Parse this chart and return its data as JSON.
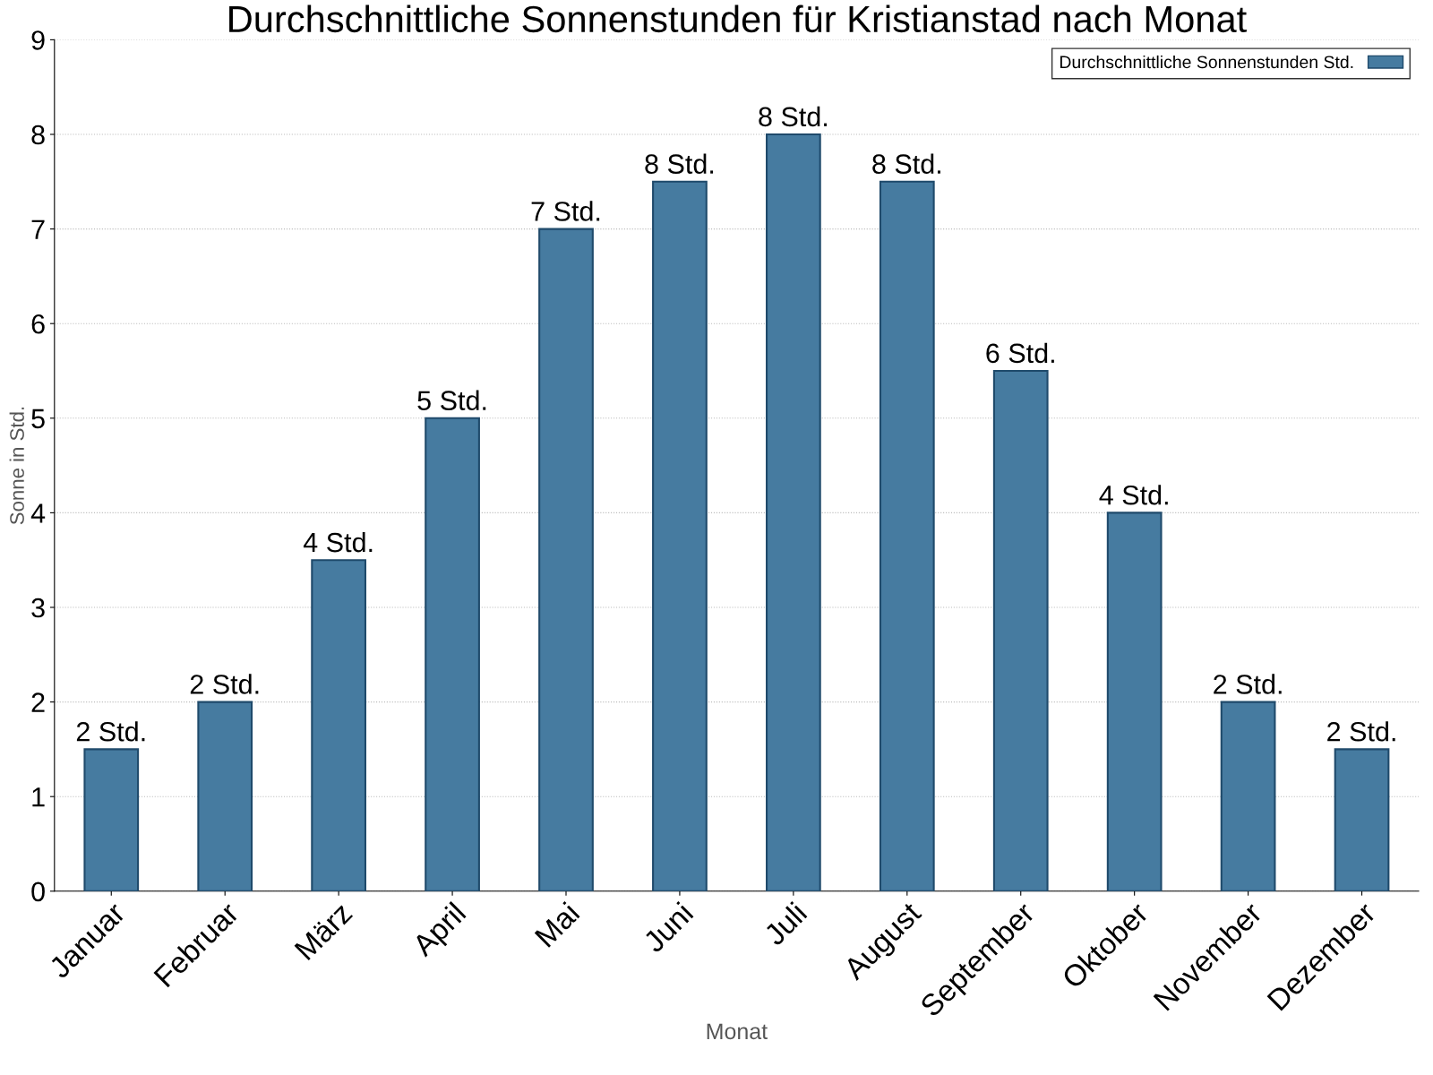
{
  "chart_data": {
    "type": "bar",
    "title": "Durchschnittliche Sonnenstunden für Kristianstad nach Monat",
    "xlabel": "Monat",
    "ylabel": "Sonne in Std.",
    "categories": [
      "Januar",
      "Februar",
      "März",
      "April",
      "Mai",
      "Juni",
      "Juli",
      "August",
      "September",
      "Oktober",
      "November",
      "Dezember"
    ],
    "series": [
      {
        "name": "Durchschnittliche Sonnenstunden Std.",
        "color": "#467ba0",
        "values": [
          1.5,
          2,
          3.5,
          5,
          7,
          7.5,
          8,
          7.5,
          5.5,
          4,
          2,
          1.5
        ],
        "value_labels": [
          "2 Std.",
          "2 Std.",
          "4 Std.",
          "5 Std.",
          "7 Std.",
          "8 Std.",
          "8 Std.",
          "8 Std.",
          "6 Std.",
          "4 Std.",
          "2 Std.",
          "2 Std."
        ]
      }
    ],
    "ylim": [
      0,
      9
    ],
    "yticks": [
      0,
      1,
      2,
      3,
      4,
      5,
      6,
      7,
      8,
      9
    ],
    "grid": "y",
    "legend": "top right"
  }
}
